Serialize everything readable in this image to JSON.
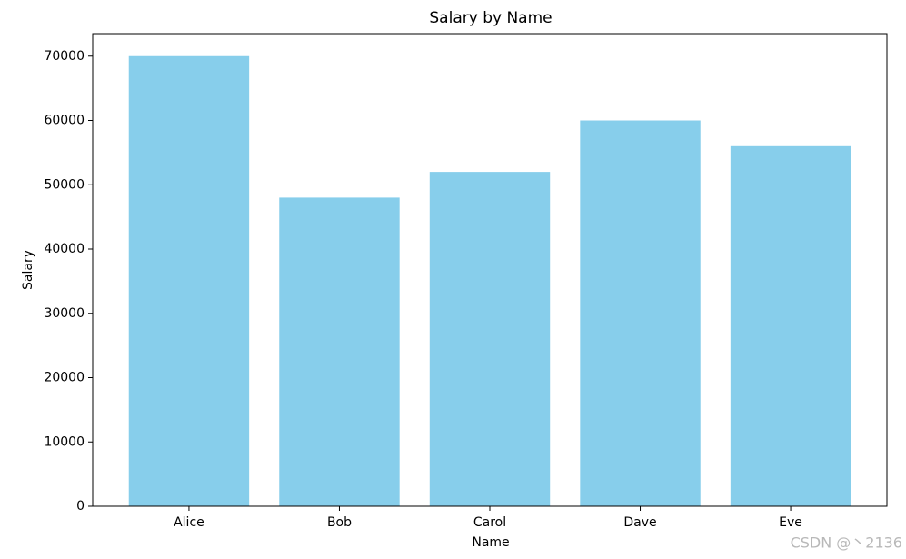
{
  "chart_data": {
    "type": "bar",
    "title": "Salary by Name",
    "x_label": "Name",
    "y_label": "Salary",
    "categories": [
      "Alice",
      "Bob",
      "Carol",
      "Dave",
      "Eve"
    ],
    "values": [
      70000,
      48000,
      52000,
      60000,
      56000
    ],
    "color": "#87ceeb",
    "ylim": [
      0,
      73500
    ],
    "yticks": [
      0,
      10000,
      20000,
      30000,
      40000,
      50000,
      60000,
      70000
    ],
    "grid": false
  },
  "watermark": "CSDN @丶2136"
}
